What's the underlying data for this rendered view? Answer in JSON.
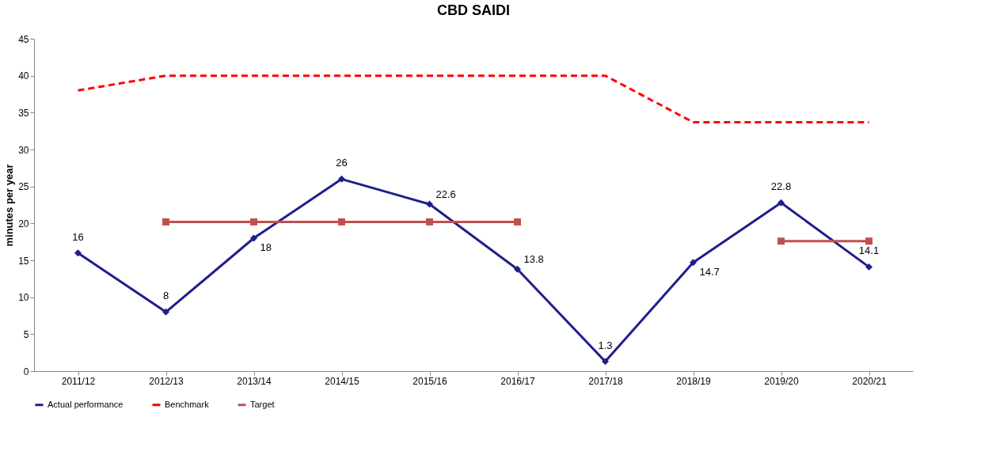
{
  "chart_data": {
    "type": "line",
    "title": "CBD SAIDI",
    "ylabel": "minutes per year",
    "categories": [
      "2011/12",
      "2012/13",
      "2013/14",
      "2014/15",
      "2015/16",
      "2016/17",
      "2017/18",
      "2018/19",
      "2019/20",
      "2020/21"
    ],
    "series": [
      {
        "name": "Actual performance",
        "color": "#1f1f8c",
        "marker": "diamond",
        "line_style": "solid",
        "values": [
          16,
          8,
          18,
          26,
          22.6,
          13.8,
          1.3,
          14.7,
          22.8,
          14.1
        ],
        "value_labels": [
          "16",
          "8",
          "18",
          "26",
          "22.6",
          "13.8",
          "1.3",
          "14.7",
          "22.8",
          "14.1"
        ]
      },
      {
        "name": "Benchmark",
        "color": "#ff0000",
        "marker": "none",
        "line_style": "dashed",
        "values": [
          38,
          40,
          40,
          40,
          40,
          40,
          40,
          33.7,
          33.7,
          33.7
        ]
      },
      {
        "name": "Target",
        "color": "#c0504d",
        "marker": "square",
        "line_style": "solid",
        "values": [
          null,
          20.2,
          20.2,
          20.2,
          20.2,
          20.2,
          null,
          null,
          17.6,
          17.6
        ]
      }
    ],
    "ylim": [
      0,
      45
    ],
    "yticks": [
      0,
      5,
      10,
      15,
      20,
      25,
      30,
      35,
      40,
      45
    ],
    "grid": false,
    "legend": "bottom"
  }
}
